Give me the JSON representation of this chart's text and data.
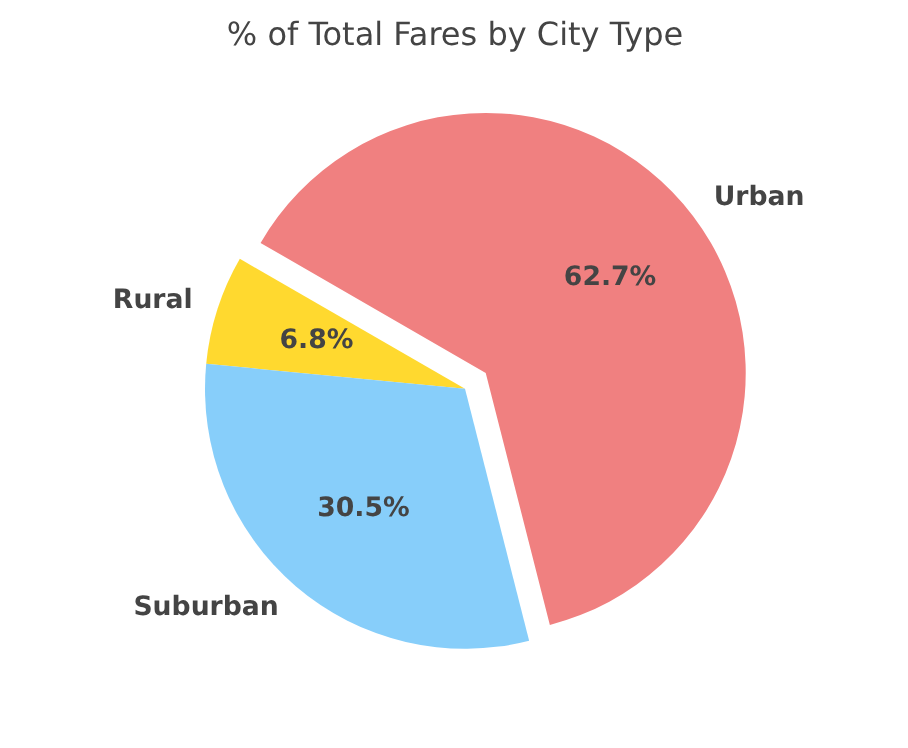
{
  "chart_data": {
    "type": "pie",
    "title": "% of Total Fares by City Type",
    "categories": [
      "Rural",
      "Suburban",
      "Urban"
    ],
    "values": [
      6.8,
      30.5,
      62.7
    ],
    "colors": [
      "#ffd92f",
      "#87cefa",
      "#f08080"
    ],
    "value_labels": [
      "6.8%",
      "30.5%",
      "62.7%"
    ]
  }
}
